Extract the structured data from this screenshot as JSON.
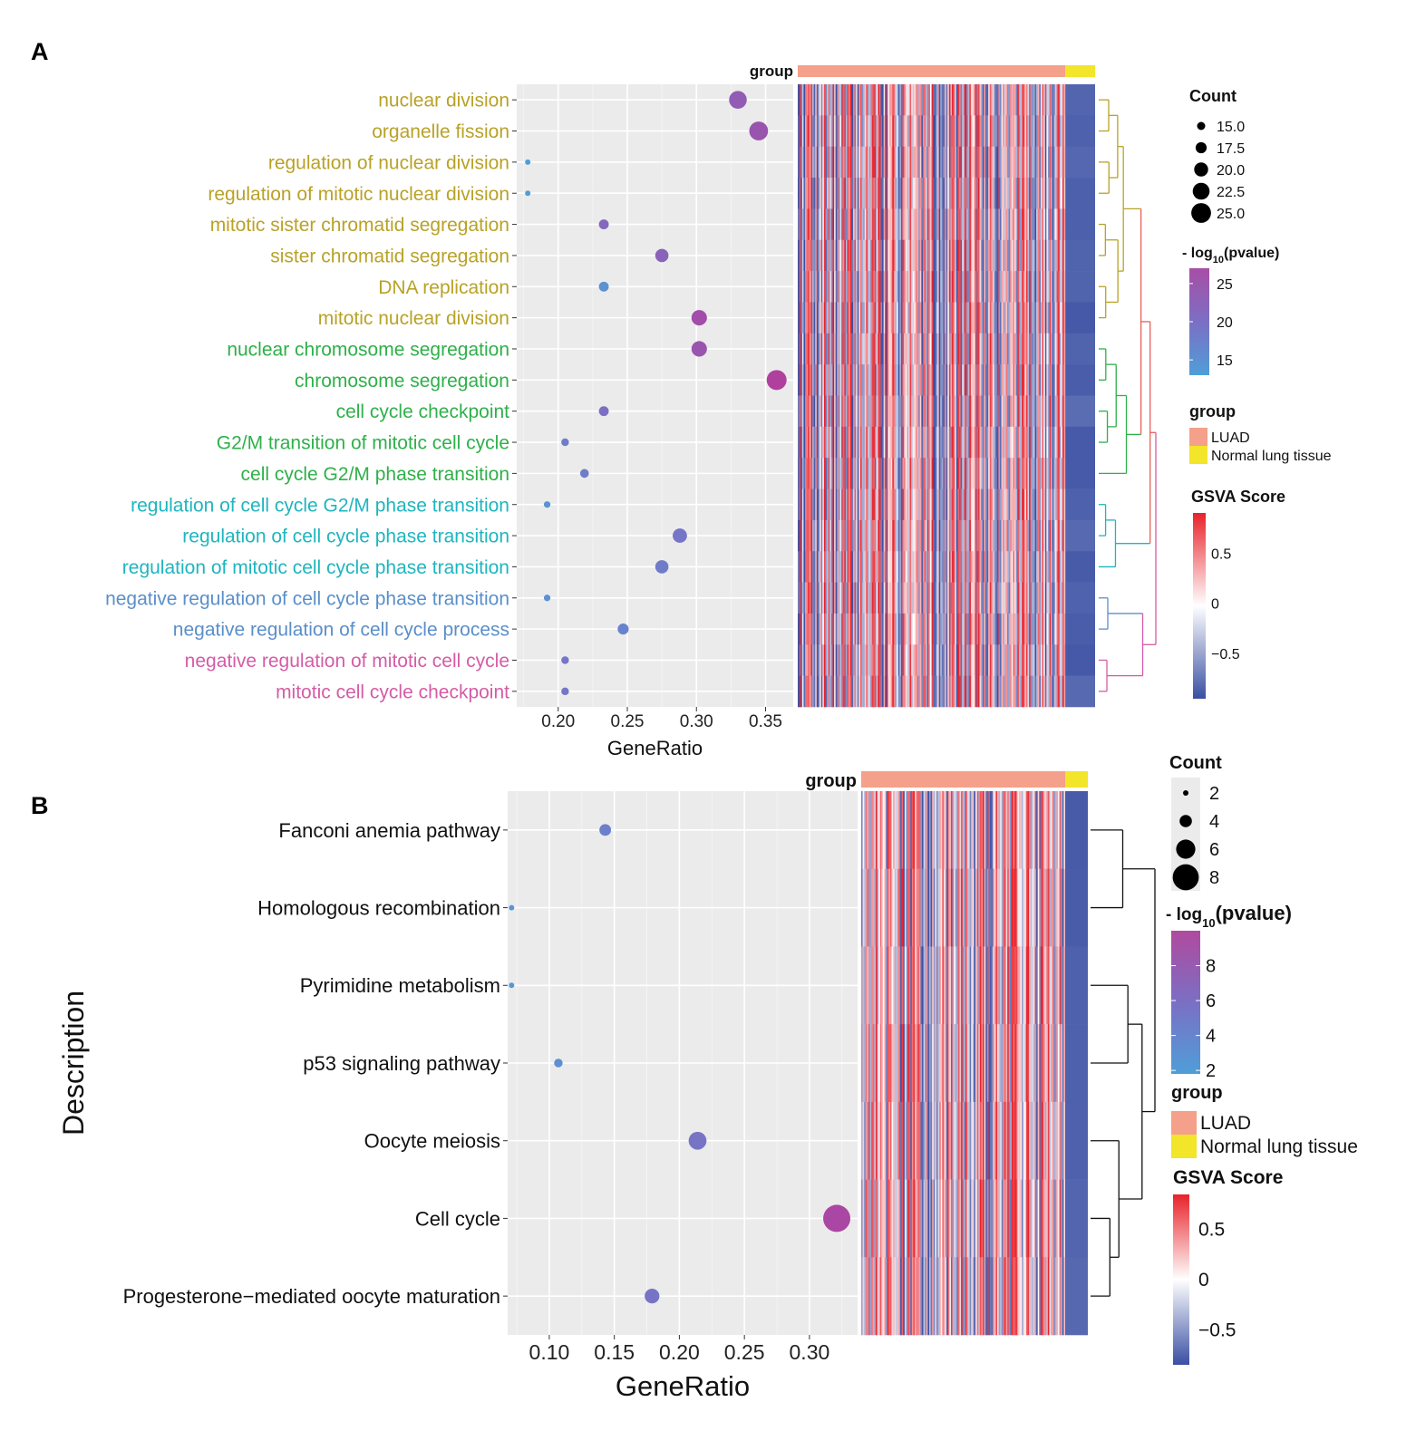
{
  "panels": {
    "a": {
      "label": "A"
    },
    "b": {
      "label": "B"
    }
  },
  "chart_data": [
    {
      "panel": "A",
      "type": "scatter",
      "subtype": "dotplot-with-gsva-heatmap",
      "xlabel": "GeneRatio",
      "ylabel": "",
      "xlim": [
        0.17,
        0.37
      ],
      "xticks": [
        0.2,
        0.25,
        0.3,
        0.35
      ],
      "xtick_labels": [
        "0.20",
        "0.25",
        "0.30",
        "0.35"
      ],
      "categories": [
        "nuclear division",
        "organelle fission",
        "regulation of nuclear division",
        "regulation of mitotic nuclear division",
        "mitotic sister chromatid segregation",
        "sister chromatid segregation",
        "DNA replication",
        "mitotic nuclear division",
        "nuclear chromosome segregation",
        "chromosome segregation",
        "cell cycle checkpoint",
        "G2/M transition of mitotic cell cycle",
        "cell cycle G2/M phase transition",
        "regulation of cell cycle G2/M phase transition",
        "regulation of cell cycle phase transition",
        "regulation of mitotic cell cycle phase transition",
        "negative regulation of cell cycle phase transition",
        "negative regulation of cell cycle process",
        "negative regulation of mitotic cell cycle",
        "mitotic cell cycle checkpoint"
      ],
      "label_colors": [
        "#b8a227",
        "#b8a227",
        "#b8a227",
        "#b8a227",
        "#b8a227",
        "#b8a227",
        "#b8a227",
        "#b8a227",
        "#2fb04a",
        "#2fb04a",
        "#2fb04a",
        "#2fb04a",
        "#2fb04a",
        "#1fb5bf",
        "#1fb5bf",
        "#1fb5bf",
        "#5b8fc9",
        "#5b8fc9",
        "#d45ca6",
        "#d45ca6"
      ],
      "gene_ratio": [
        0.33,
        0.345,
        0.178,
        0.178,
        0.233,
        0.275,
        0.233,
        0.302,
        0.302,
        0.358,
        0.233,
        0.205,
        0.219,
        0.192,
        0.288,
        0.275,
        0.192,
        0.247,
        0.205,
        0.205
      ],
      "count": [
        24,
        25,
        13,
        13,
        17,
        20,
        17,
        22,
        22,
        26,
        17,
        15,
        16,
        14,
        21,
        20,
        14,
        18,
        15,
        15
      ],
      "neg_log10_pvalue": [
        23,
        24,
        13,
        13,
        21,
        22,
        15,
        25,
        24,
        27,
        20,
        18,
        18,
        15,
        19,
        18,
        15,
        17,
        19,
        19
      ],
      "size_legend": {
        "title": "Count",
        "labels": [
          "15.0",
          "17.5",
          "20.0",
          "22.5",
          "25.0"
        ],
        "values": [
          15,
          17.5,
          20,
          22.5,
          25
        ]
      },
      "color_legend": {
        "title_prefix": "- log",
        "title_sub": "10",
        "title_suffix": "(pvalue)",
        "labels": [
          "25",
          "20",
          "15"
        ],
        "values": [
          25,
          20,
          15
        ],
        "range": [
          13,
          27
        ]
      },
      "group_legend": {
        "title": "group",
        "items": [
          {
            "label": "LUAD",
            "color": "#f4a08a"
          },
          {
            "label": "Normal lung tissue",
            "color": "#f2e52a"
          }
        ]
      },
      "gsva_legend": {
        "title": "GSVA Score",
        "labels": [
          "0.5",
          "0",
          "−0.5"
        ],
        "values": [
          0.5,
          0,
          -0.5
        ],
        "range": [
          -0.95,
          0.9
        ]
      },
      "heatmap": {
        "group_label": "group",
        "luad_fraction": 0.9,
        "seed": 7
      }
    },
    {
      "panel": "B",
      "type": "scatter",
      "subtype": "dotplot-with-gsva-heatmap",
      "xlabel": "GeneRatio",
      "ylabel": "Description",
      "xlim": [
        0.068,
        0.337
      ],
      "xticks": [
        0.1,
        0.15,
        0.2,
        0.25,
        0.3
      ],
      "xtick_labels": [
        "0.10",
        "0.15",
        "0.20",
        "0.25",
        "0.30"
      ],
      "categories": [
        "Fanconi anemia pathway",
        "Homologous recombination",
        "Pyrimidine metabolism",
        "p53 signaling pathway",
        "Oocyte meiosis",
        "Cell cycle",
        "Progesterone−mediated oocyte maturation"
      ],
      "label_colors": [
        "#111111",
        "#111111",
        "#111111",
        "#111111",
        "#111111",
        "#111111",
        "#111111"
      ],
      "gene_ratio": [
        0.143,
        0.071,
        0.071,
        0.107,
        0.214,
        0.321,
        0.179
      ],
      "count": [
        4,
        2,
        2,
        3,
        6,
        9,
        5
      ],
      "neg_log10_pvalue": [
        4.5,
        2.5,
        2.5,
        3,
        5.5,
        9.5,
        5.5
      ],
      "size_legend": {
        "title": "Count",
        "labels": [
          "2",
          "4",
          "6",
          "8"
        ],
        "values": [
          2,
          4,
          6,
          8
        ]
      },
      "color_legend": {
        "title_prefix": "- log",
        "title_sub": "10",
        "title_suffix": "(pvalue)",
        "labels": [
          "8",
          "6",
          "4",
          "2"
        ],
        "values": [
          8,
          6,
          4,
          2
        ],
        "range": [
          1.8,
          10
        ]
      },
      "group_legend": {
        "title": "group",
        "items": [
          {
            "label": "LUAD",
            "color": "#f4a08a"
          },
          {
            "label": "Normal lung tissue",
            "color": "#f2e52a"
          }
        ]
      },
      "gsva_legend": {
        "title": "GSVA Score",
        "labels": [
          "0.5",
          "0",
          "−0.5"
        ],
        "values": [
          0.5,
          0,
          -0.5
        ],
        "range": [
          -0.85,
          0.85
        ]
      },
      "heatmap": {
        "group_label": "group",
        "luad_fraction": 0.9,
        "seed": 13
      }
    }
  ]
}
